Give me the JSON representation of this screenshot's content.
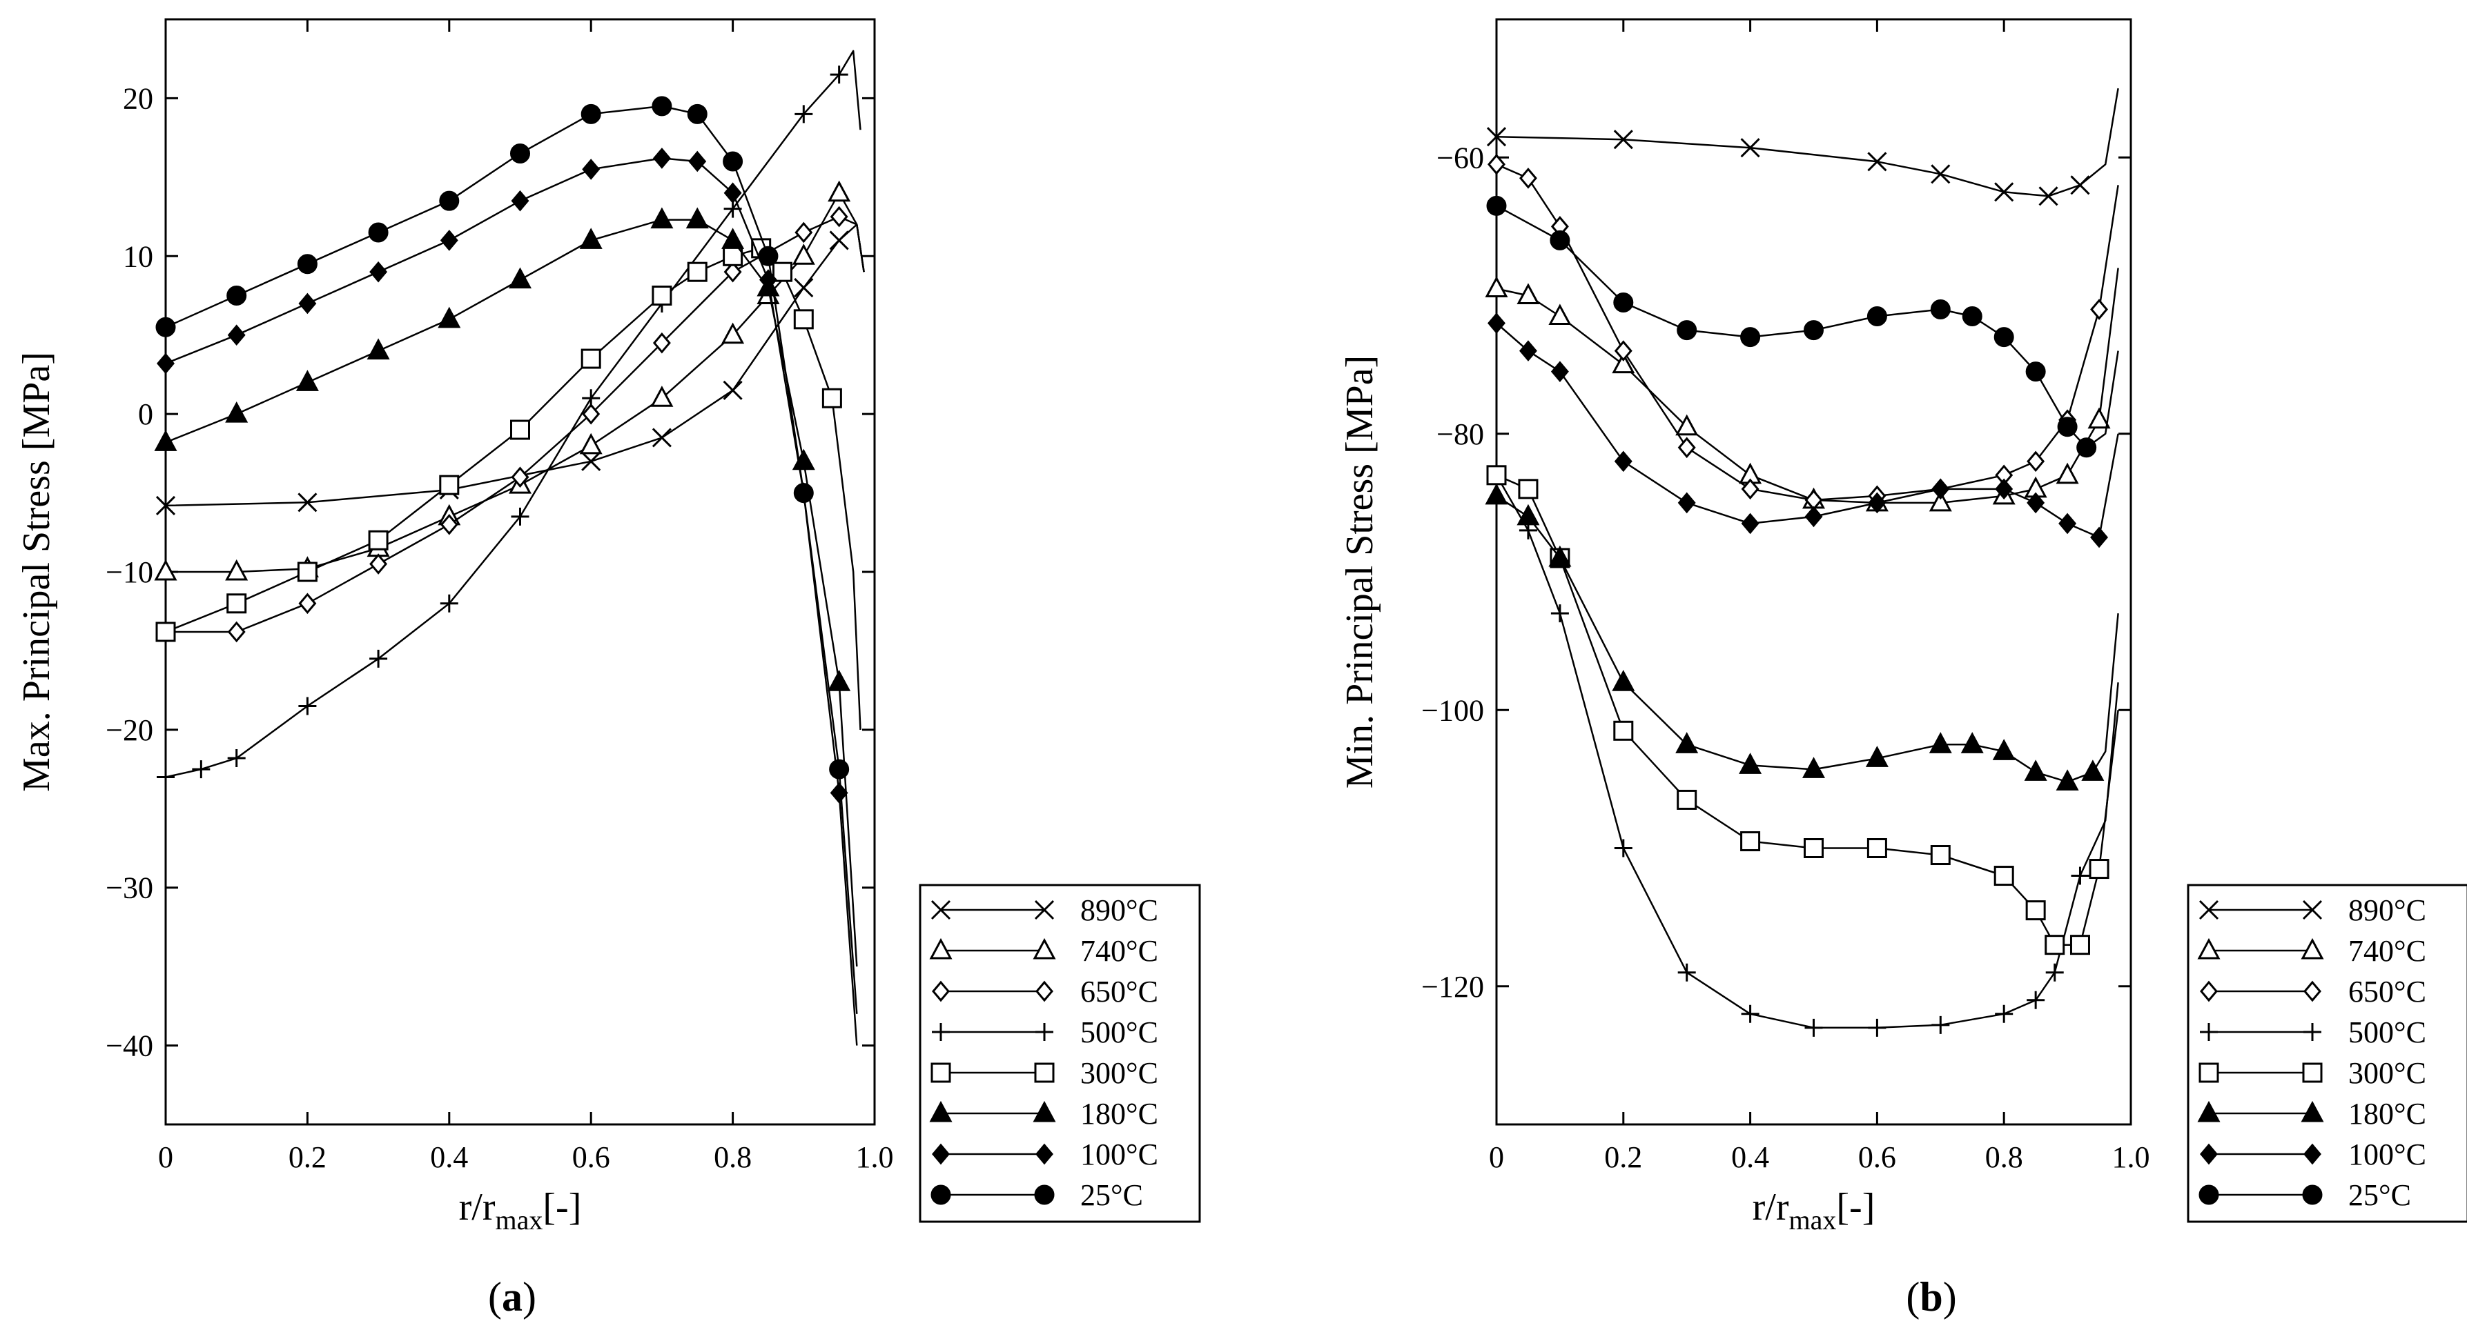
{
  "chart_data": [
    {
      "type": "line",
      "ylabel": "Max. Principal Stress [MPa]",
      "xlabel": "r/r",
      "xlabel_sub": "max",
      "xlabel_suffix": "[-]",
      "caption_letter": "a",
      "xlim": [
        0,
        1.0
      ],
      "ylim": [
        -45,
        25
      ],
      "xticks": [
        0,
        0.2,
        0.4,
        0.6,
        0.8,
        1.0
      ],
      "xtick_labels": [
        "0",
        "0.2",
        "0.4",
        "0.6",
        "0.8",
        "1.0"
      ],
      "yticks": [
        20,
        10,
        0,
        -10,
        -20,
        -30,
        -40
      ],
      "ytick_labels": [
        "20",
        "10",
        "0",
        "−10",
        "−20",
        "−30",
        "−40"
      ],
      "series": [
        {
          "name": "890°C",
          "marker": "x",
          "x": [
            0,
            0.2,
            0.4,
            0.6,
            0.7,
            0.8,
            0.9,
            0.95,
            0.975,
            0.985
          ],
          "y": [
            -5.8,
            -5.6,
            -4.8,
            -3,
            -1.5,
            1.5,
            8,
            11,
            12,
            9
          ]
        },
        {
          "name": "740°C",
          "marker": "triangle-open",
          "x": [
            0,
            0.1,
            0.2,
            0.3,
            0.4,
            0.5,
            0.6,
            0.7,
            0.8,
            0.85,
            0.9,
            0.95,
            0.975,
            0.985
          ],
          "y": [
            -10,
            -10,
            -9.8,
            -8.5,
            -6.5,
            -4.5,
            -2,
            1,
            5,
            7.5,
            10,
            14,
            12,
            9
          ]
        },
        {
          "name": "650°C",
          "marker": "diamond-open",
          "x": [
            0,
            0.1,
            0.2,
            0.3,
            0.4,
            0.5,
            0.6,
            0.7,
            0.8,
            0.9,
            0.95,
            0.975,
            0.985
          ],
          "y": [
            -13.8,
            -13.8,
            -12,
            -9.5,
            -7,
            -4,
            0,
            4.5,
            9,
            11.5,
            12.5,
            12,
            9
          ]
        },
        {
          "name": "500°C",
          "marker": "plus",
          "x": [
            0,
            0.05,
            0.1,
            0.2,
            0.3,
            0.4,
            0.5,
            0.6,
            0.7,
            0.8,
            0.9,
            0.95,
            0.97,
            0.98
          ],
          "y": [
            -23,
            -22.5,
            -21.8,
            -18.5,
            -15.5,
            -12,
            -6.5,
            1,
            7,
            13,
            19,
            21.5,
            23,
            18
          ]
        },
        {
          "name": "300°C",
          "marker": "square-open",
          "x": [
            0,
            0.1,
            0.2,
            0.3,
            0.4,
            0.5,
            0.6,
            0.7,
            0.75,
            0.8,
            0.84,
            0.87,
            0.9,
            0.94,
            0.97,
            0.98
          ],
          "y": [
            -13.8,
            -12,
            -10,
            -8,
            -4.5,
            -1,
            3.5,
            7.5,
            9,
            10,
            10.5,
            9,
            6,
            1,
            -10,
            -20
          ]
        },
        {
          "name": "180°C",
          "marker": "triangle-filled",
          "x": [
            0,
            0.1,
            0.2,
            0.3,
            0.4,
            0.5,
            0.6,
            0.7,
            0.75,
            0.8,
            0.85,
            0.9,
            0.95,
            0.975
          ],
          "y": [
            -1.8,
            0,
            2,
            4,
            6,
            8.5,
            11,
            12.3,
            12.3,
            11,
            8,
            -3,
            -17,
            -35
          ]
        },
        {
          "name": "100°C",
          "marker": "diamond-filled",
          "x": [
            0,
            0.1,
            0.2,
            0.3,
            0.4,
            0.5,
            0.6,
            0.7,
            0.75,
            0.8,
            0.85,
            0.9,
            0.95,
            0.975
          ],
          "y": [
            3.2,
            5,
            7,
            9,
            11,
            13.5,
            15.5,
            16.2,
            16,
            14,
            8.5,
            -5,
            -24,
            -40
          ]
        },
        {
          "name": "25°C",
          "marker": "circle-filled",
          "x": [
            0,
            0.1,
            0.2,
            0.3,
            0.4,
            0.5,
            0.6,
            0.7,
            0.75,
            0.8,
            0.85,
            0.9,
            0.95,
            0.975
          ],
          "y": [
            5.5,
            7.5,
            9.5,
            11.5,
            13.5,
            16.5,
            19,
            19.5,
            19,
            16,
            10,
            -5,
            -22.5,
            -38
          ]
        }
      ]
    },
    {
      "type": "line",
      "ylabel": "Min. Principal Stress [MPa]",
      "xlabel": "r/r",
      "xlabel_sub": "max",
      "xlabel_suffix": "[-]",
      "caption_letter": "b",
      "xlim": [
        0,
        1.0
      ],
      "ylim": [
        -130,
        -50
      ],
      "xticks": [
        0,
        0.2,
        0.4,
        0.6,
        0.8,
        1.0
      ],
      "xtick_labels": [
        "0",
        "0.2",
        "0.4",
        "0.6",
        "0.8",
        "1.0"
      ],
      "yticks": [
        -60,
        -80,
        -100,
        -120
      ],
      "ytick_labels": [
        "−60",
        "−80",
        "−100",
        "−120"
      ],
      "series": [
        {
          "name": "890°C",
          "marker": "x",
          "x": [
            0,
            0.2,
            0.4,
            0.6,
            0.7,
            0.8,
            0.87,
            0.92,
            0.96,
            0.98
          ],
          "y": [
            -58.5,
            -58.7,
            -59.3,
            -60.3,
            -61.2,
            -62.5,
            -62.8,
            -62,
            -60.5,
            -55
          ]
        },
        {
          "name": "740°C",
          "marker": "triangle-open",
          "x": [
            0,
            0.05,
            0.1,
            0.2,
            0.3,
            0.4,
            0.5,
            0.6,
            0.7,
            0.8,
            0.85,
            0.9,
            0.95,
            0.98
          ],
          "y": [
            -69.5,
            -70,
            -71.5,
            -75,
            -79.5,
            -83,
            -84.8,
            -85,
            -85,
            -84.5,
            -84,
            -83,
            -79,
            -68
          ]
        },
        {
          "name": "650°C",
          "marker": "diamond-open",
          "x": [
            0,
            0.05,
            0.1,
            0.2,
            0.3,
            0.4,
            0.5,
            0.6,
            0.7,
            0.8,
            0.85,
            0.9,
            0.95,
            0.98
          ],
          "y": [
            -60.5,
            -61.5,
            -65,
            -74,
            -81,
            -84,
            -84.8,
            -84.5,
            -84,
            -83,
            -82,
            -79,
            -71,
            -62
          ]
        },
        {
          "name": "500°C",
          "marker": "plus",
          "x": [
            0,
            0.05,
            0.1,
            0.2,
            0.3,
            0.4,
            0.5,
            0.6,
            0.7,
            0.8,
            0.85,
            0.88,
            0.92,
            0.96,
            0.98
          ],
          "y": [
            -83,
            -87,
            -93,
            -110,
            -119,
            -122,
            -123,
            -123,
            -122.8,
            -122,
            -121,
            -119,
            -112,
            -108,
            -98
          ]
        },
        {
          "name": "300°C",
          "marker": "square-open",
          "x": [
            0,
            0.05,
            0.1,
            0.2,
            0.3,
            0.4,
            0.5,
            0.6,
            0.7,
            0.8,
            0.85,
            0.88,
            0.92,
            0.95,
            0.98
          ],
          "y": [
            -83,
            -84,
            -89,
            -101.5,
            -106.5,
            -109.5,
            -110,
            -110,
            -110.5,
            -112,
            -114.5,
            -117,
            -117,
            -111.5,
            -100
          ]
        },
        {
          "name": "180°C",
          "marker": "triangle-filled",
          "x": [
            0,
            0.05,
            0.1,
            0.2,
            0.3,
            0.4,
            0.5,
            0.6,
            0.7,
            0.75,
            0.8,
            0.85,
            0.9,
            0.94,
            0.96,
            0.98
          ],
          "y": [
            -84.5,
            -86,
            -89,
            -98,
            -102.5,
            -104,
            -104.3,
            -103.5,
            -102.5,
            -102.5,
            -103,
            -104.5,
            -105.2,
            -104.5,
            -103,
            -93
          ]
        },
        {
          "name": "100°C",
          "marker": "diamond-filled",
          "x": [
            0,
            0.05,
            0.1,
            0.2,
            0.3,
            0.4,
            0.5,
            0.6,
            0.7,
            0.8,
            0.85,
            0.9,
            0.95,
            0.98
          ],
          "y": [
            -72,
            -74,
            -75.5,
            -82,
            -85,
            -86.5,
            -86,
            -85,
            -84,
            -84,
            -85,
            -86.5,
            -87.5,
            -80
          ]
        },
        {
          "name": "25°C",
          "marker": "circle-filled",
          "x": [
            0,
            0.1,
            0.2,
            0.3,
            0.4,
            0.5,
            0.6,
            0.7,
            0.75,
            0.8,
            0.85,
            0.9,
            0.93,
            0.96,
            0.98
          ],
          "y": [
            -63.5,
            -66,
            -70.5,
            -72.5,
            -73,
            -72.5,
            -71.5,
            -71,
            -71.5,
            -73,
            -75.5,
            -79.5,
            -81,
            -80,
            -74
          ]
        }
      ]
    }
  ]
}
